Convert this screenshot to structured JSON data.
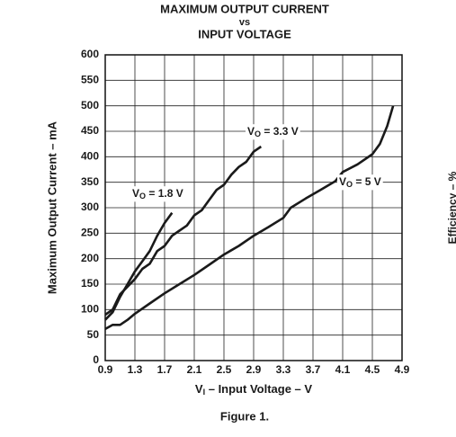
{
  "chart_data": {
    "type": "line",
    "title_lines": [
      "MAXIMUM OUTPUT CURRENT",
      "vs",
      "INPUT VOLTAGE"
    ],
    "x_label": "VI – Input Voltage – V",
    "y_label": "Maximum Output Current – mA",
    "right_axis_label": "Efficiency – %",
    "caption": "Figure 1.",
    "xlim": [
      0.9,
      4.9
    ],
    "xticks": [
      0.9,
      1.3,
      1.7,
      2.1,
      2.5,
      2.9,
      3.3,
      3.7,
      4.1,
      4.5,
      4.9
    ],
    "ylim": [
      0,
      600
    ],
    "yticks": [
      0,
      50,
      100,
      150,
      200,
      250,
      300,
      350,
      400,
      450,
      500,
      550,
      600
    ],
    "grid": true,
    "series": [
      {
        "name": "VO = 1.8 V",
        "color": "#1a1a1a",
        "x": [
          0.9,
          1.0,
          1.1,
          1.2,
          1.3,
          1.4,
          1.5,
          1.6,
          1.7,
          1.8
        ],
        "values": [
          80,
          95,
          125,
          150,
          175,
          195,
          215,
          245,
          270,
          290
        ]
      },
      {
        "name": "VO = 3.3 V",
        "color": "#1a1a1a",
        "x": [
          0.9,
          1.0,
          1.1,
          1.2,
          1.3,
          1.4,
          1.5,
          1.6,
          1.7,
          1.8,
          1.9,
          2.0,
          2.1,
          2.2,
          2.3,
          2.4,
          2.5,
          2.6,
          2.7,
          2.8,
          2.9,
          3.0
        ],
        "values": [
          90,
          100,
          130,
          145,
          160,
          180,
          190,
          215,
          225,
          245,
          255,
          265,
          285,
          295,
          315,
          335,
          345,
          365,
          380,
          390,
          410,
          420
        ]
      },
      {
        "name": "VO = 5 V",
        "color": "#1a1a1a",
        "x": [
          0.9,
          1.0,
          1.1,
          1.2,
          1.3,
          1.5,
          1.7,
          1.9,
          2.1,
          2.3,
          2.5,
          2.7,
          2.9,
          3.1,
          3.3,
          3.4,
          3.6,
          3.8,
          4.0,
          4.1,
          4.3,
          4.5,
          4.6,
          4.7,
          4.78
        ],
        "values": [
          62,
          70,
          70,
          80,
          92,
          112,
          132,
          150,
          168,
          188,
          208,
          225,
          245,
          262,
          280,
          300,
          318,
          335,
          352,
          370,
          385,
          405,
          425,
          460,
          500
        ]
      }
    ]
  }
}
